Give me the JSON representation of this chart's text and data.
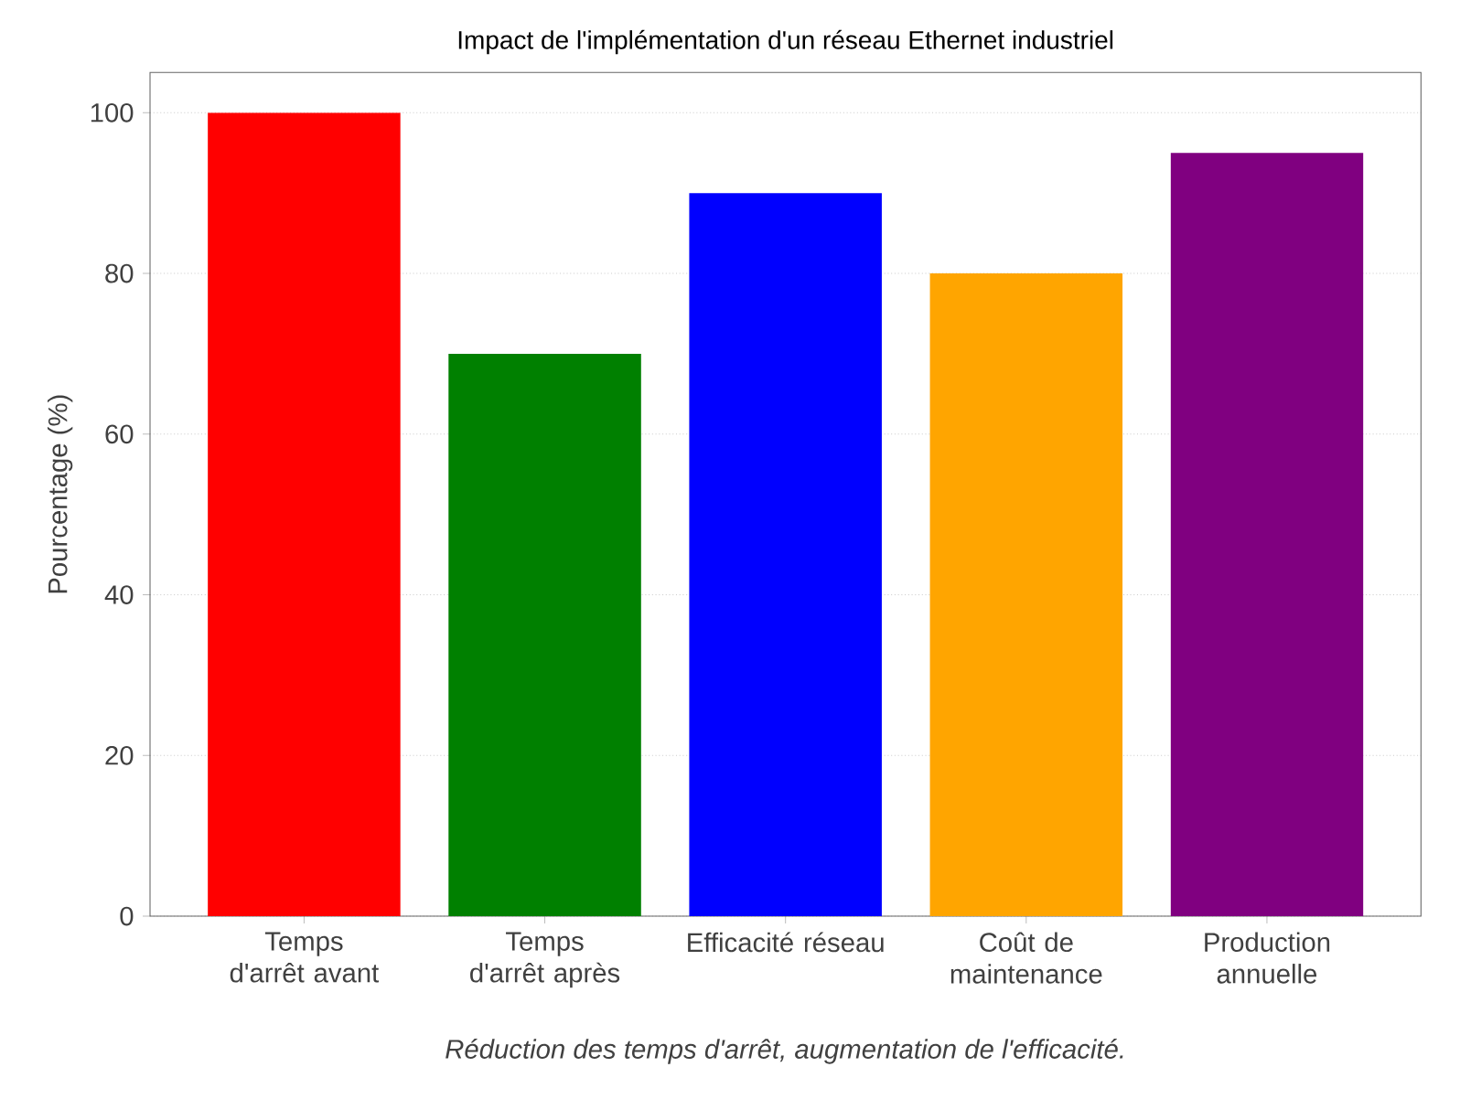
{
  "chart_data": {
    "type": "bar",
    "title": "Impact de l'implémentation d'un réseau Ethernet industriel",
    "xlabel": "*Réduction des temps d'arrêt, augmentation de l'efficacité.*",
    "ylabel": "Pourcentage (%)",
    "categories": [
      "Temps d'arrêt avant",
      "Temps d'arrêt après",
      "Efficacité réseau",
      "Coût de maintenance",
      "Production annuelle"
    ],
    "values": [
      100,
      70,
      90,
      80,
      95
    ],
    "colors": [
      "#ff0000",
      "#008000",
      "#0000ff",
      "#ffa500",
      "#800080"
    ],
    "ylim": [
      0,
      105
    ],
    "yticks": [
      0,
      20,
      40,
      60,
      80,
      100
    ],
    "grid": "y"
  }
}
